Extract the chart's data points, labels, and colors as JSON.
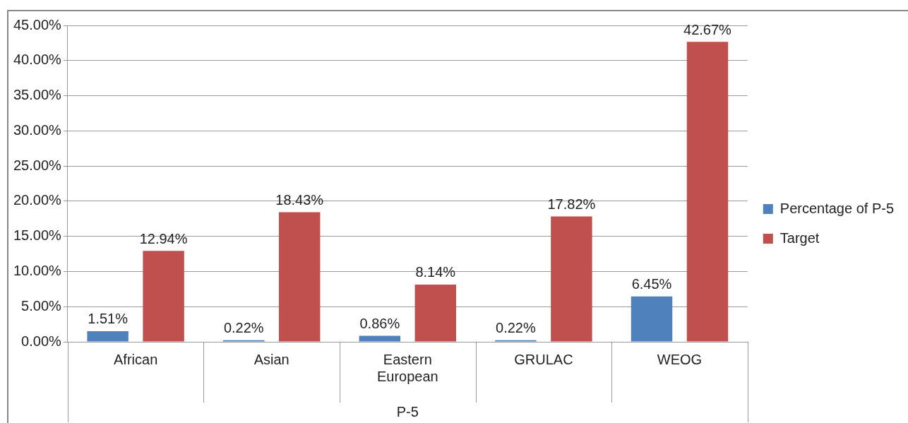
{
  "chart_data": {
    "type": "bar",
    "xlabel": "P-5",
    "categories": [
      "African",
      "Asian",
      "Eastern European",
      "GRULAC",
      "WEOG"
    ],
    "series": [
      {
        "name": "Percentage of P-5",
        "color": "#4f81bd",
        "values": [
          1.51,
          0.22,
          0.86,
          0.22,
          6.45
        ],
        "value_labels": [
          "1.51%",
          "0.22%",
          "0.86%",
          "0.22%",
          "6.45%"
        ]
      },
      {
        "name": "Target",
        "color": "#c0504d",
        "values": [
          12.94,
          18.43,
          8.14,
          17.82,
          42.67
        ],
        "value_labels": [
          "12.94%",
          "18.43%",
          "8.14%",
          "17.82%",
          "42.67%"
        ]
      }
    ],
    "ylim": [
      0,
      45
    ],
    "yticks": [
      {
        "value": 0,
        "label": "0.00%"
      },
      {
        "value": 5,
        "label": "5.00%"
      },
      {
        "value": 10,
        "label": "10.00%"
      },
      {
        "value": 15,
        "label": "15.00%"
      },
      {
        "value": 20,
        "label": "20.00%"
      },
      {
        "value": 25,
        "label": "25.00%"
      },
      {
        "value": 30,
        "label": "30.00%"
      },
      {
        "value": 35,
        "label": "35.00%"
      },
      {
        "value": 40,
        "label": "40.00%"
      },
      {
        "value": 45,
        "label": "45.00%"
      }
    ],
    "grid": "y",
    "legend": "right"
  }
}
